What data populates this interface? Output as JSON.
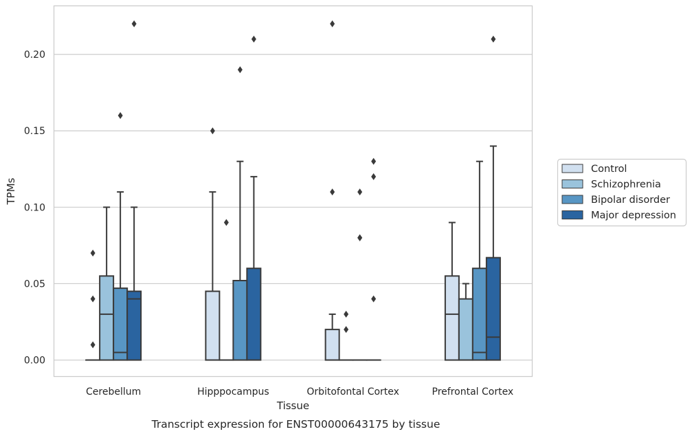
{
  "chart_data": {
    "type": "box",
    "title": "",
    "caption": "Transcript expression for ENST00000643175 by tissue",
    "xlabel": "Tissue",
    "ylabel": "TPMs",
    "ylim": [
      -0.011,
      0.232
    ],
    "yticks": [
      "0.00",
      "0.05",
      "0.10",
      "0.15",
      "0.20"
    ],
    "ytick_values": [
      0.0,
      0.05,
      0.1,
      0.15,
      0.2
    ],
    "grid": "horizontal",
    "legend_position": "right",
    "categories": [
      "Cerebellum",
      "Hipppocampus",
      "Orbitofontal Cortex",
      "Prefrontal Cortex"
    ],
    "series": [
      {
        "name": "Control",
        "color": "#d1e0f0",
        "boxes": [
          {
            "q1": 0,
            "median": 0,
            "q3": 0,
            "whisker_low": 0,
            "whisker_high": 0,
            "outliers": [
              0.01,
              0.04,
              0.07
            ]
          },
          {
            "q1": 0,
            "median": 0,
            "q3": 0.045,
            "whisker_low": 0,
            "whisker_high": 0.11,
            "outliers": [
              0.15
            ]
          },
          {
            "q1": 0,
            "median": 0,
            "q3": 0.02,
            "whisker_low": 0,
            "whisker_high": 0.03,
            "outliers": [
              0.11,
              0.22
            ]
          },
          {
            "q1": 0,
            "median": 0.03,
            "q3": 0.055,
            "whisker_low": 0,
            "whisker_high": 0.09,
            "outliers": []
          }
        ]
      },
      {
        "name": "Schizophrenia",
        "color": "#9ac3dc",
        "boxes": [
          {
            "q1": 0,
            "median": 0.03,
            "q3": 0.055,
            "whisker_low": 0,
            "whisker_high": 0.1,
            "outliers": []
          },
          {
            "q1": 0,
            "median": 0,
            "q3": 0,
            "whisker_low": 0,
            "whisker_high": 0,
            "outliers": [
              0.09
            ]
          },
          {
            "q1": 0,
            "median": 0,
            "q3": 0,
            "whisker_low": 0,
            "whisker_high": 0,
            "outliers": [
              0.02,
              0.03
            ]
          },
          {
            "q1": 0,
            "median": 0,
            "q3": 0.04,
            "whisker_low": 0,
            "whisker_high": 0.05,
            "outliers": []
          }
        ]
      },
      {
        "name": "Bipolar disorder",
        "color": "#5896c4",
        "boxes": [
          {
            "q1": 0,
            "median": 0.005,
            "q3": 0.047,
            "whisker_low": 0,
            "whisker_high": 0.11,
            "outliers": [
              0.16
            ]
          },
          {
            "q1": 0,
            "median": 0,
            "q3": 0.052,
            "whisker_low": 0,
            "whisker_high": 0.13,
            "outliers": [
              0.19
            ]
          },
          {
            "q1": 0,
            "median": 0,
            "q3": 0,
            "whisker_low": 0,
            "whisker_high": 0,
            "outliers": [
              0.08,
              0.08,
              0.11
            ]
          },
          {
            "q1": 0,
            "median": 0.005,
            "q3": 0.06,
            "whisker_low": 0,
            "whisker_high": 0.13,
            "outliers": []
          }
        ]
      },
      {
        "name": "Major depression",
        "color": "#2a64a0",
        "boxes": [
          {
            "q1": 0,
            "median": 0.04,
            "q3": 0.045,
            "whisker_low": 0,
            "whisker_high": 0.1,
            "outliers": [
              0.22
            ]
          },
          {
            "q1": 0,
            "median": 0,
            "q3": 0.06,
            "whisker_low": 0,
            "whisker_high": 0.12,
            "outliers": [
              0.21
            ]
          },
          {
            "q1": 0,
            "median": 0,
            "q3": 0,
            "whisker_low": 0,
            "whisker_high": 0,
            "outliers": [
              0.04,
              0.12,
              0.13
            ]
          },
          {
            "q1": 0,
            "median": 0.015,
            "q3": 0.067,
            "whisker_low": 0,
            "whisker_high": 0.14,
            "outliers": [
              0.21
            ]
          }
        ]
      }
    ]
  }
}
